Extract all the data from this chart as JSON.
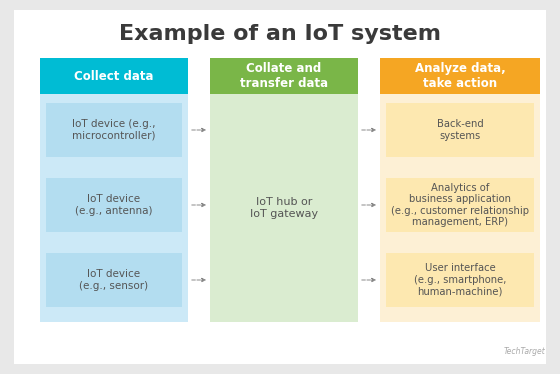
{
  "title": "Example of an IoT system",
  "title_fontsize": 16,
  "title_fontweight": "bold",
  "title_color": "#3a3a3a",
  "outer_bg": "#e8e8e8",
  "inner_bg": "#ffffff",
  "columns": [
    {
      "header": "Collect data",
      "header_bg": "#00bcd4",
      "header_text_color": "#ffffff",
      "body_bg": "#cce9f7",
      "item_bg": "#b3ddf0",
      "items": [
        "IoT device\n(e.g., sensor)",
        "IoT device\n(e.g., antenna)",
        "IoT device (e.g.,\nmicrocontroller)"
      ]
    },
    {
      "header": "Collate and\ntransfer data",
      "header_bg": "#7ab648",
      "header_text_color": "#ffffff",
      "body_bg": "#daecd0",
      "item_bg": "#daecd0",
      "items": [
        "IoT hub or\nIoT gateway"
      ]
    },
    {
      "header": "Analyze data,\ntake action",
      "header_bg": "#f5a623",
      "header_text_color": "#ffffff",
      "body_bg": "#fdf0d5",
      "item_bg": "#fde8b0",
      "items": [
        "User interface\n(e.g., smartphone,\nhuman-machine)",
        "Analytics of\nbusiness application\n(e.g., customer relationship\nmanagement, ERP)",
        "Back-end\nsystems"
      ]
    }
  ],
  "header_fontsize": 8.5,
  "item_fontsize": 7.5,
  "item_text_color": "#555555",
  "arrow_color": "#888888",
  "watermark": "TechTarget"
}
